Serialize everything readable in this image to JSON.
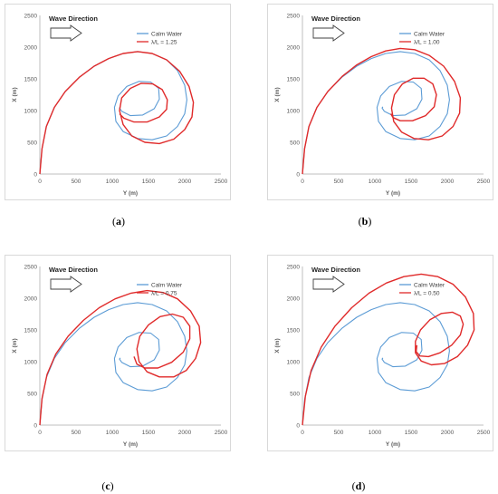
{
  "figure": {
    "captions": [
      "a",
      "b",
      "c",
      "d"
    ]
  },
  "chart_data": [
    {
      "type": "line",
      "panel": "a",
      "annotation": "Wave Direction",
      "xlabel": "Y (m)",
      "ylabel": "X (m)",
      "xlim": [
        0,
        2500
      ],
      "ylim": [
        0,
        2500
      ],
      "xticks": [
        0,
        500,
        1000,
        1500,
        2000,
        2500
      ],
      "yticks": [
        0,
        500,
        1000,
        1500,
        2000,
        2500
      ],
      "grid": false,
      "legend_position": "top-right",
      "series": [
        {
          "name": "Calm Water",
          "color": "#5b9bd5",
          "x": [
            0,
            30,
            90,
            200,
            350,
            550,
            750,
            950,
            1150,
            1350,
            1550,
            1750,
            1900,
            2000,
            2030,
            2000,
            1900,
            1750,
            1550,
            1350,
            1150,
            1050,
            1030,
            1080,
            1200,
            1370,
            1530,
            1640,
            1650,
            1580,
            1420,
            1250,
            1130,
            1100,
            1110
          ],
          "y": [
            0,
            400,
            750,
            1050,
            1300,
            1530,
            1700,
            1820,
            1900,
            1930,
            1900,
            1800,
            1630,
            1400,
            1170,
            950,
            750,
            600,
            540,
            560,
            670,
            830,
            1050,
            1230,
            1380,
            1460,
            1450,
            1350,
            1180,
            1030,
            930,
            920,
            990,
            1040,
            1060
          ]
        },
        {
          "name": "λ/L = 1.25",
          "color": "#e02a2a",
          "x": [
            0,
            30,
            90,
            200,
            350,
            550,
            750,
            950,
            1150,
            1350,
            1550,
            1750,
            1930,
            2060,
            2120,
            2100,
            2000,
            1850,
            1650,
            1450,
            1270,
            1150,
            1100,
            1130,
            1250,
            1400,
            1560,
            1690,
            1760,
            1750,
            1650,
            1480,
            1300,
            1160,
            1100
          ],
          "y": [
            0,
            400,
            750,
            1050,
            1300,
            1530,
            1700,
            1820,
            1900,
            1930,
            1900,
            1800,
            1620,
            1380,
            1130,
            900,
            700,
            550,
            480,
            500,
            600,
            780,
            1000,
            1200,
            1350,
            1430,
            1420,
            1330,
            1170,
            1020,
            900,
            820,
            820,
            880,
            950
          ]
        }
      ]
    },
    {
      "type": "line",
      "panel": "b",
      "annotation": "Wave Direction",
      "xlabel": "Y (m)",
      "ylabel": "X (m)",
      "xlim": [
        0,
        2500
      ],
      "ylim": [
        0,
        2500
      ],
      "xticks": [
        0,
        500,
        1000,
        1500,
        2000,
        2500
      ],
      "yticks": [
        0,
        500,
        1000,
        1500,
        2000,
        2500
      ],
      "grid": false,
      "legend_position": "top-right",
      "series": [
        {
          "name": "Calm Water",
          "color": "#5b9bd5",
          "x": [
            0,
            30,
            90,
            200,
            350,
            550,
            750,
            950,
            1150,
            1350,
            1550,
            1750,
            1900,
            2000,
            2030,
            2000,
            1900,
            1750,
            1550,
            1350,
            1150,
            1050,
            1030,
            1080,
            1200,
            1370,
            1530,
            1640,
            1650,
            1580,
            1420,
            1250,
            1130,
            1100,
            1110
          ],
          "y": [
            0,
            400,
            750,
            1050,
            1300,
            1530,
            1700,
            1820,
            1900,
            1930,
            1900,
            1800,
            1630,
            1400,
            1170,
            950,
            750,
            600,
            540,
            560,
            670,
            830,
            1050,
            1230,
            1380,
            1460,
            1450,
            1350,
            1180,
            1030,
            930,
            920,
            990,
            1040,
            1060
          ]
        },
        {
          "name": "λ/L = 1.00",
          "color": "#e02a2a",
          "x": [
            0,
            30,
            90,
            200,
            350,
            550,
            750,
            950,
            1150,
            1350,
            1550,
            1750,
            1950,
            2100,
            2180,
            2170,
            2080,
            1930,
            1740,
            1540,
            1370,
            1260,
            1230,
            1270,
            1380,
            1530,
            1680,
            1800,
            1850,
            1820,
            1700,
            1520,
            1350,
            1250,
            1220
          ],
          "y": [
            0,
            400,
            750,
            1050,
            1300,
            1540,
            1720,
            1850,
            1940,
            1980,
            1960,
            1870,
            1700,
            1460,
            1200,
            960,
            750,
            600,
            540,
            560,
            660,
            830,
            1040,
            1250,
            1420,
            1510,
            1510,
            1420,
            1250,
            1060,
            920,
            840,
            840,
            890,
            950
          ]
        }
      ]
    },
    {
      "type": "line",
      "panel": "c",
      "annotation": "Wave Direction",
      "xlabel": "Y (m)",
      "ylabel": "X (m)",
      "xlim": [
        0,
        2500
      ],
      "ylim": [
        0,
        2500
      ],
      "xticks": [
        0,
        500,
        1000,
        1500,
        2000,
        2500
      ],
      "yticks": [
        0,
        500,
        1000,
        1500,
        2000,
        2500
      ],
      "grid": false,
      "legend_position": "top-right",
      "series": [
        {
          "name": "Calm Water",
          "color": "#5b9bd5",
          "x": [
            0,
            30,
            90,
            200,
            350,
            550,
            750,
            950,
            1150,
            1350,
            1550,
            1750,
            1900,
            2000,
            2030,
            2000,
            1900,
            1750,
            1550,
            1350,
            1150,
            1050,
            1030,
            1080,
            1200,
            1370,
            1530,
            1640,
            1650,
            1580,
            1420,
            1250,
            1130,
            1100,
            1110
          ],
          "y": [
            0,
            400,
            750,
            1050,
            1300,
            1530,
            1700,
            1820,
            1900,
            1930,
            1900,
            1800,
            1630,
            1400,
            1170,
            950,
            750,
            600,
            540,
            560,
            670,
            830,
            1050,
            1230,
            1380,
            1460,
            1450,
            1350,
            1180,
            1030,
            930,
            920,
            990,
            1040,
            1060
          ]
        },
        {
          "name": "λ/L = 0.75",
          "color": "#e02a2a",
          "x": [
            0,
            30,
            100,
            220,
            390,
            600,
            820,
            1040,
            1260,
            1480,
            1700,
            1900,
            2080,
            2200,
            2220,
            2150,
            2020,
            1850,
            1650,
            1480,
            1370,
            1340,
            1380,
            1500,
            1660,
            1830,
            1980,
            2070,
            2070,
            1980,
            1820,
            1630,
            1450,
            1340,
            1300
          ],
          "y": [
            0,
            420,
            800,
            1120,
            1400,
            1650,
            1850,
            1990,
            2080,
            2120,
            2090,
            1990,
            1800,
            1560,
            1300,
            1050,
            860,
            760,
            760,
            840,
            1000,
            1200,
            1400,
            1580,
            1710,
            1750,
            1700,
            1560,
            1360,
            1150,
            990,
            900,
            900,
            960,
            1080
          ]
        }
      ]
    },
    {
      "type": "line",
      "panel": "d",
      "annotation": "Wave Direction",
      "xlabel": "Y (m)",
      "ylabel": "X (m)",
      "xlim": [
        0,
        2500
      ],
      "ylim": [
        0,
        2500
      ],
      "xticks": [
        0,
        500,
        1000,
        1500,
        2000,
        2500
      ],
      "yticks": [
        0,
        500,
        1000,
        1500,
        2000,
        2500
      ],
      "grid": false,
      "legend_position": "top-right",
      "series": [
        {
          "name": "Calm Water",
          "color": "#5b9bd5",
          "x": [
            0,
            30,
            90,
            200,
            350,
            550,
            750,
            950,
            1150,
            1350,
            1550,
            1750,
            1900,
            2000,
            2030,
            2000,
            1900,
            1750,
            1550,
            1350,
            1150,
            1050,
            1030,
            1080,
            1200,
            1370,
            1530,
            1640,
            1650,
            1580,
            1420,
            1250,
            1130,
            1100,
            1110
          ],
          "y": [
            0,
            400,
            750,
            1050,
            1300,
            1530,
            1700,
            1820,
            1900,
            1930,
            1900,
            1800,
            1630,
            1400,
            1170,
            950,
            750,
            600,
            540,
            560,
            670,
            830,
            1050,
            1230,
            1380,
            1460,
            1450,
            1350,
            1180,
            1030,
            930,
            920,
            990,
            1040,
            1060
          ]
        },
        {
          "name": "λ/L = 0.50",
          "color": "#e02a2a",
          "x": [
            0,
            40,
            120,
            260,
            450,
            680,
            920,
            1160,
            1400,
            1640,
            1870,
            2080,
            2250,
            2360,
            2370,
            2280,
            2140,
            1960,
            1780,
            1640,
            1560,
            1560,
            1630,
            1760,
            1920,
            2070,
            2180,
            2220,
            2180,
            2060,
            1900,
            1740,
            1620,
            1570,
            1580
          ],
          "y": [
            0,
            450,
            860,
            1230,
            1560,
            1850,
            2080,
            2240,
            2340,
            2380,
            2340,
            2220,
            2020,
            1760,
            1500,
            1260,
            1080,
            970,
            950,
            1010,
            1140,
            1320,
            1500,
            1660,
            1760,
            1780,
            1720,
            1590,
            1420,
            1260,
            1140,
            1080,
            1090,
            1160,
            1260
          ]
        }
      ]
    }
  ]
}
